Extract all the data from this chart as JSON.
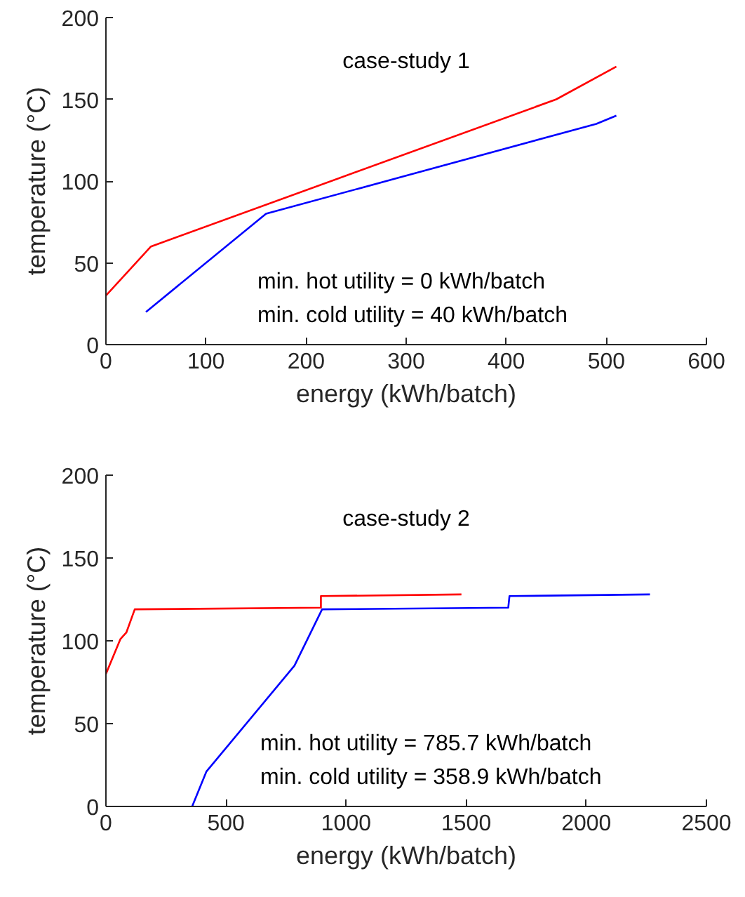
{
  "chart_data": [
    {
      "type": "line",
      "title": "case-study 1",
      "xlabel": "energy (kWh/batch)",
      "ylabel": "temperature (°C)",
      "xlim": [
        0,
        600
      ],
      "xticks": [
        0,
        100,
        200,
        300,
        400,
        500,
        600
      ],
      "ylim": [
        0,
        200
      ],
      "yticks": [
        0,
        50,
        100,
        150,
        200
      ],
      "grid": false,
      "annotations": [
        "min. hot utility = 0 kWh/batch",
        "min. cold utility = 40 kWh/batch"
      ],
      "series": [
        {
          "color": "#ff0000",
          "x": [
            0,
            45,
            450,
            510
          ],
          "values": [
            30,
            60,
            150,
            170
          ]
        },
        {
          "color": "#0000ff",
          "x": [
            40,
            160,
            490,
            510
          ],
          "values": [
            20,
            80,
            135,
            140
          ]
        }
      ]
    },
    {
      "type": "line",
      "title": "case-study 2",
      "xlabel": "energy (kWh/batch)",
      "ylabel": "temperature (°C)",
      "xlim": [
        0,
        2500
      ],
      "xticks": [
        0,
        500,
        1000,
        1500,
        2000,
        2500
      ],
      "ylim": [
        0,
        200
      ],
      "yticks": [
        0,
        50,
        100,
        150,
        200
      ],
      "grid": false,
      "annotations": [
        "min. hot utility = 785.7 kWh/batch",
        "min. cold utility = 358.9 kWh/batch"
      ],
      "series": [
        {
          "color": "#ff0000",
          "x": [
            0,
            60,
            85,
            120,
            895,
            895,
            1480
          ],
          "values": [
            80,
            101,
            105,
            119,
            120,
            127,
            128
          ]
        },
        {
          "color": "#0000ff",
          "x": [
            359,
            418,
            785,
            900,
            1675,
            1680,
            2265
          ],
          "values": [
            0,
            21,
            85,
            119,
            120,
            127,
            128
          ]
        }
      ]
    }
  ]
}
